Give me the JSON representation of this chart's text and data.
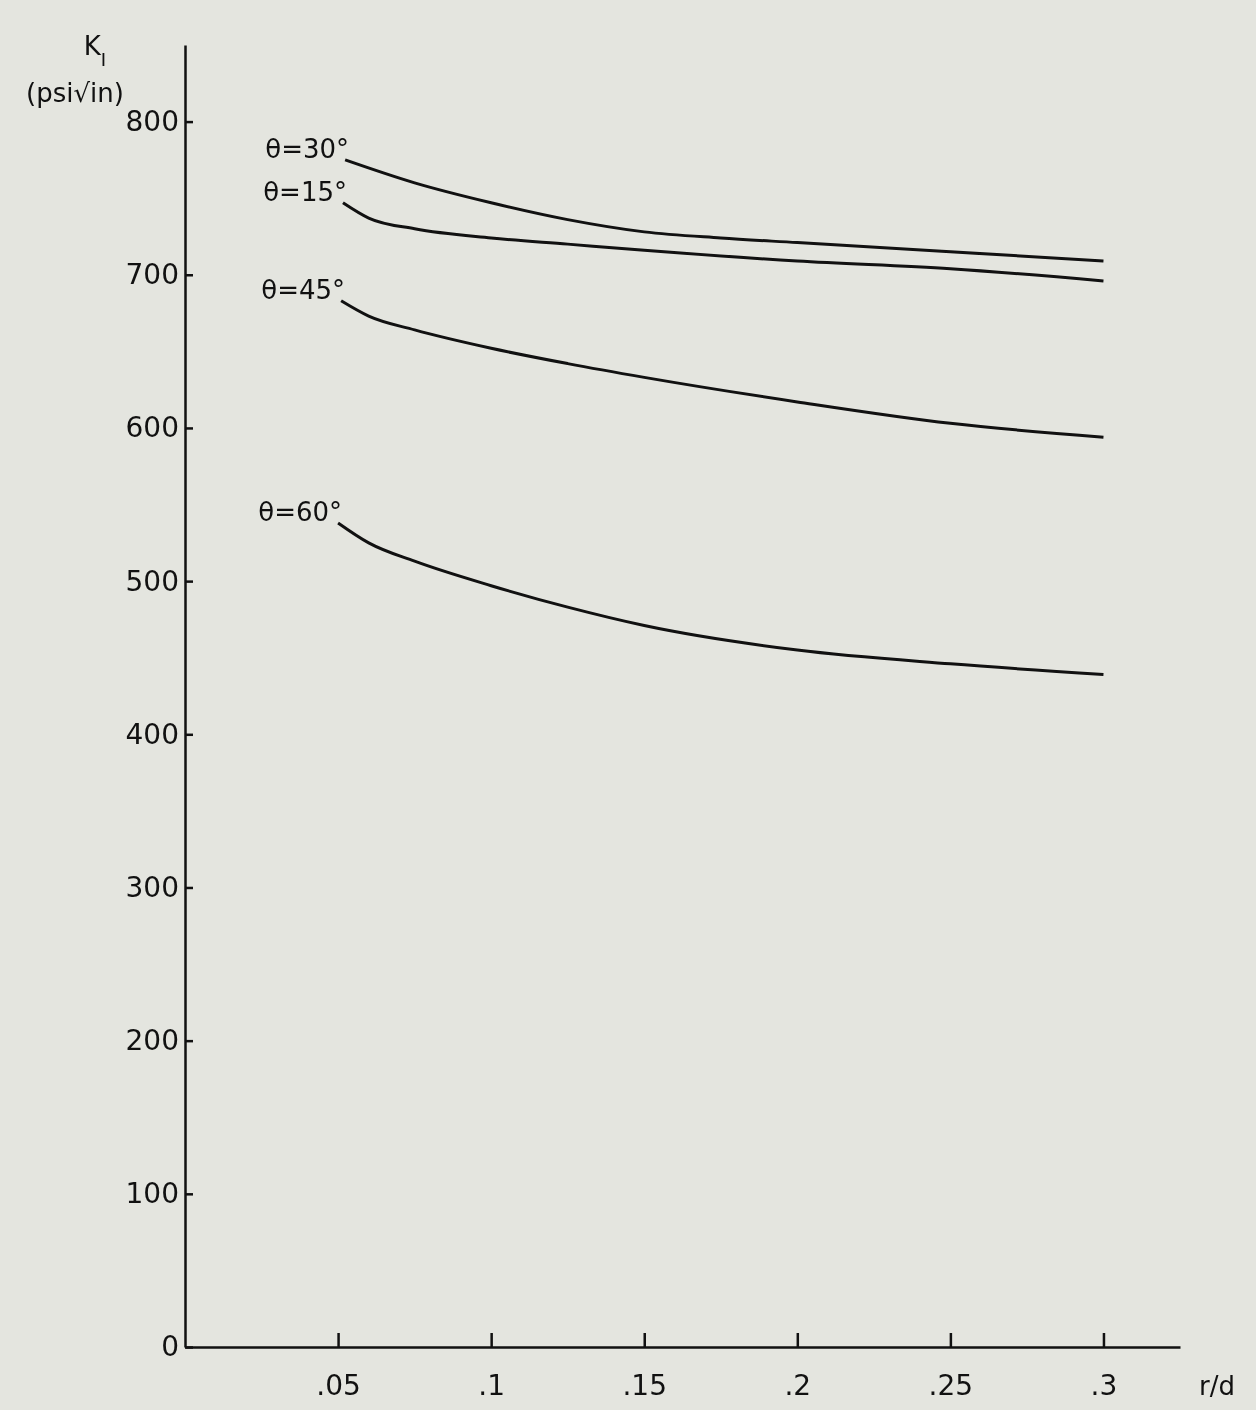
{
  "chart_data": {
    "type": "line",
    "xlabel": "r/d",
    "ylabel": "K$_{I}$ (psi√in)",
    "xlim": [
      0,
      0.325
    ],
    "ylim": [
      0,
      850
    ],
    "xticks": [
      {
        "value": 0.05,
        "label": ".05"
      },
      {
        "value": 0.1,
        "label": ".1"
      },
      {
        "value": 0.15,
        "label": ".15"
      },
      {
        "value": 0.2,
        "label": ".2"
      },
      {
        "value": 0.25,
        "label": ".25"
      },
      {
        "value": 0.3,
        "label": ".3"
      }
    ],
    "yticks": [
      0,
      100,
      200,
      300,
      400,
      500,
      600,
      700,
      800
    ],
    "grid": false,
    "legend": false,
    "marker": "none",
    "line_style": "solid",
    "series": [
      {
        "name": "θ=30°",
        "color": "#111111",
        "x": [
          0.0523,
          0.075,
          0.1,
          0.125,
          0.15,
          0.175,
          0.2,
          0.25,
          0.3
        ],
        "values": [
          775,
          760,
          747,
          736,
          728,
          724,
          721,
          715,
          709
        ]
      },
      {
        "name": "θ=15°",
        "color": "#111111",
        "x": [
          0.0516,
          0.06,
          0.075,
          0.1,
          0.125,
          0.15,
          0.2,
          0.25,
          0.3
        ],
        "values": [
          747,
          737,
          730,
          724,
          720,
          716,
          709,
          704,
          696
        ]
      },
      {
        "name": "θ=45°",
        "color": "#111111",
        "x": [
          0.051,
          0.06,
          0.075,
          0.1,
          0.125,
          0.15,
          0.2,
          0.25,
          0.3
        ],
        "values": [
          683,
          673,
          664,
          652,
          642,
          633,
          617,
          603,
          594
        ]
      },
      {
        "name": "θ=60°",
        "color": "#111111",
        "x": [
          0.05,
          0.06,
          0.075,
          0.1,
          0.125,
          0.15,
          0.2,
          0.25,
          0.3
        ],
        "values": [
          538,
          525,
          513,
          497,
          483,
          471,
          455,
          446,
          439
        ]
      }
    ]
  }
}
